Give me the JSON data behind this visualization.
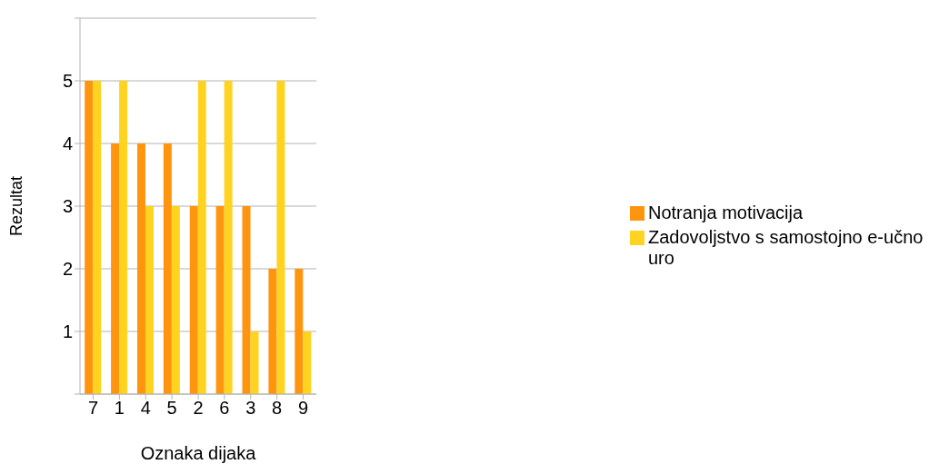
{
  "chart_data": {
    "type": "bar",
    "xlabel": "Oznaka dijaka",
    "ylabel": "Rezultat",
    "categories": [
      "7",
      "1",
      "4",
      "5",
      "2",
      "6",
      "3",
      "8",
      "9"
    ],
    "series": [
      {
        "name": "Notranja motivacija",
        "color": "#ff950e",
        "values": [
          5,
          4,
          4,
          4,
          3,
          3,
          3,
          2,
          2
        ]
      },
      {
        "name": "Zadovoljstvo s samostojno e-učno uro",
        "color": "#ffd320",
        "values": [
          5,
          5,
          3,
          3,
          5,
          5,
          1,
          5,
          1
        ]
      }
    ],
    "ylim": [
      0,
      6
    ],
    "yticks": [
      {
        "value": 0,
        "label": null
      },
      1,
      2,
      3,
      4,
      5,
      {
        "value": 6,
        "label": null
      }
    ],
    "grid": "y",
    "legend": "right"
  }
}
